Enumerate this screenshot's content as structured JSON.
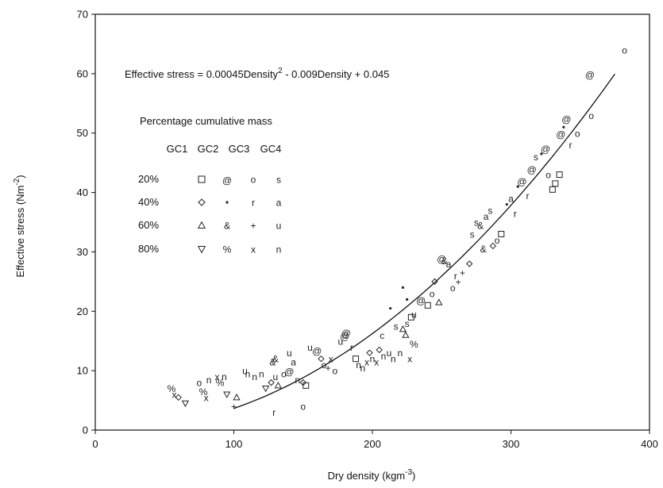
{
  "chart_data": {
    "type": "scatter",
    "xlabel": "Dry density (kgm-3)",
    "xlabel_parts": [
      "Dry density (kgm",
      "-3",
      ")"
    ],
    "ylabel": "Effective stress (Nm-2)",
    "ylabel_parts": [
      "Effective stress (Nm",
      "-2",
      ")"
    ],
    "xlim": [
      0,
      400
    ],
    "ylim": [
      0,
      70
    ],
    "x_ticks": [
      0,
      100,
      200,
      300,
      400
    ],
    "y_ticks": [
      0,
      10,
      20,
      30,
      40,
      50,
      60,
      70
    ],
    "grid": false,
    "equation": "Effective stress = 0.00045Density2 - 0.009Density + 0.045",
    "equation_parts": [
      "Effective stress = 0.00045Density",
      "2",
      " - 0.009Density + 0.045"
    ],
    "fit": {
      "a": 0.00045,
      "b": -0.009,
      "c": 0.045,
      "x_range": [
        100,
        375
      ]
    },
    "legend": {
      "title": "Percentage cumulative mass",
      "columns": [
        "GC1",
        "GC2",
        "GC3",
        "GC4"
      ],
      "rows": [
        {
          "label": "20%",
          "symbols": [
            "□",
            "@",
            "o",
            "s"
          ]
        },
        {
          "label": "40%",
          "symbols": [
            "◇",
            "•",
            "r",
            "a"
          ]
        },
        {
          "label": "60%",
          "symbols": [
            "△",
            "&",
            "+",
            "u"
          ]
        },
        {
          "label": "80%",
          "symbols": [
            "▽",
            "%",
            "x",
            "n"
          ]
        }
      ]
    },
    "points": [
      {
        "x": 55,
        "y": 7,
        "s": "%"
      },
      {
        "x": 57,
        "y": 6,
        "s": "x"
      },
      {
        "x": 60,
        "y": 5.5,
        "s": "◇"
      },
      {
        "x": 65,
        "y": 4.5,
        "s": "▽"
      },
      {
        "x": 75,
        "y": 8,
        "s": "o"
      },
      {
        "x": 78,
        "y": 6.5,
        "s": "%"
      },
      {
        "x": 80,
        "y": 5.5,
        "s": "x"
      },
      {
        "x": 82,
        "y": 8.5,
        "s": "n"
      },
      {
        "x": 88,
        "y": 9,
        "s": "x"
      },
      {
        "x": 90,
        "y": 8,
        "s": "%"
      },
      {
        "x": 93,
        "y": 9,
        "s": "n"
      },
      {
        "x": 95,
        "y": 6,
        "s": "▽"
      },
      {
        "x": 100,
        "y": 4,
        "s": "+"
      },
      {
        "x": 102,
        "y": 5.5,
        "s": "△"
      },
      {
        "x": 108,
        "y": 10,
        "s": "u"
      },
      {
        "x": 110,
        "y": 9.5,
        "s": "n"
      },
      {
        "x": 115,
        "y": 9,
        "s": "n"
      },
      {
        "x": 120,
        "y": 9.5,
        "s": "n"
      },
      {
        "x": 123,
        "y": 7,
        "s": "▽"
      },
      {
        "x": 127,
        "y": 8,
        "s": "◇"
      },
      {
        "x": 128,
        "y": 11.5,
        "s": "&"
      },
      {
        "x": 130,
        "y": 12,
        "s": "&"
      },
      {
        "x": 130,
        "y": 9,
        "s": "u"
      },
      {
        "x": 132,
        "y": 7.5,
        "s": "△"
      },
      {
        "x": 129,
        "y": 3,
        "s": "r"
      },
      {
        "x": 136,
        "y": 9.5,
        "s": "o"
      },
      {
        "x": 140,
        "y": 10,
        "s": "@"
      },
      {
        "x": 143,
        "y": 11.5,
        "s": "a"
      },
      {
        "x": 140,
        "y": 13,
        "s": "u"
      },
      {
        "x": 146,
        "y": 8.5,
        "s": "n"
      },
      {
        "x": 150,
        "y": 8,
        "s": "◇"
      },
      {
        "x": 152,
        "y": 7.5,
        "s": "□"
      },
      {
        "x": 150,
        "y": 4,
        "s": "o"
      },
      {
        "x": 155,
        "y": 14,
        "s": "u"
      },
      {
        "x": 160,
        "y": 13.5,
        "s": "@"
      },
      {
        "x": 163,
        "y": 12,
        "s": "◇"
      },
      {
        "x": 165,
        "y": 11,
        "s": "o"
      },
      {
        "x": 168,
        "y": 10.5,
        "s": "+"
      },
      {
        "x": 170,
        "y": 12,
        "s": "x"
      },
      {
        "x": 173,
        "y": 10,
        "s": "o"
      },
      {
        "x": 177,
        "y": 15,
        "s": "u"
      },
      {
        "x": 180,
        "y": 16,
        "s": "@"
      },
      {
        "x": 181,
        "y": 16.5,
        "s": "@"
      },
      {
        "x": 185,
        "y": 14,
        "s": "r"
      },
      {
        "x": 188,
        "y": 12,
        "s": "□"
      },
      {
        "x": 190,
        "y": 11,
        "s": "n"
      },
      {
        "x": 193,
        "y": 10.5,
        "s": "n"
      },
      {
        "x": 196,
        "y": 11.5,
        "s": "x"
      },
      {
        "x": 198,
        "y": 13,
        "s": "◇"
      },
      {
        "x": 200,
        "y": 12,
        "s": "n"
      },
      {
        "x": 203,
        "y": 11.5,
        "s": "x"
      },
      {
        "x": 205,
        "y": 13.5,
        "s": "◇"
      },
      {
        "x": 207,
        "y": 16,
        "s": "c"
      },
      {
        "x": 208,
        "y": 12.5,
        "s": "n"
      },
      {
        "x": 212,
        "y": 13,
        "s": "u"
      },
      {
        "x": 215,
        "y": 12,
        "s": "n"
      },
      {
        "x": 217,
        "y": 17.5,
        "s": "s"
      },
      {
        "x": 220,
        "y": 13,
        "s": "n"
      },
      {
        "x": 222,
        "y": 17,
        "s": "△"
      },
      {
        "x": 224,
        "y": 16,
        "s": "△"
      },
      {
        "x": 225,
        "y": 18,
        "s": "s"
      },
      {
        "x": 227,
        "y": 12,
        "s": "x"
      },
      {
        "x": 230,
        "y": 14.5,
        "s": "%"
      },
      {
        "x": 225,
        "y": 22,
        "s": "•"
      },
      {
        "x": 222,
        "y": 24,
        "s": "•"
      },
      {
        "x": 213,
        "y": 20.5,
        "s": "•"
      },
      {
        "x": 228,
        "y": 19,
        "s": "□"
      },
      {
        "x": 230,
        "y": 19.5,
        "s": "u"
      },
      {
        "x": 235,
        "y": 22,
        "s": "@"
      },
      {
        "x": 240,
        "y": 21,
        "s": "□"
      },
      {
        "x": 243,
        "y": 23,
        "s": "o"
      },
      {
        "x": 245,
        "y": 25,
        "s": "◇"
      },
      {
        "x": 248,
        "y": 21.5,
        "s": "△"
      },
      {
        "x": 250,
        "y": 29,
        "s": "@"
      },
      {
        "x": 252,
        "y": 28.5,
        "s": "&"
      },
      {
        "x": 255,
        "y": 28,
        "s": "a"
      },
      {
        "x": 258,
        "y": 24,
        "s": "o"
      },
      {
        "x": 260,
        "y": 26,
        "s": "r"
      },
      {
        "x": 262,
        "y": 25,
        "s": "+"
      },
      {
        "x": 265,
        "y": 26.5,
        "s": "+"
      },
      {
        "x": 270,
        "y": 28,
        "s": "◇"
      },
      {
        "x": 272,
        "y": 33,
        "s": "s"
      },
      {
        "x": 275,
        "y": 35,
        "s": "s"
      },
      {
        "x": 278,
        "y": 34.5,
        "s": "&"
      },
      {
        "x": 280,
        "y": 30.5,
        "s": "&"
      },
      {
        "x": 282,
        "y": 36,
        "s": "a"
      },
      {
        "x": 285,
        "y": 37,
        "s": "s"
      },
      {
        "x": 287,
        "y": 31,
        "s": "◇"
      },
      {
        "x": 290,
        "y": 32,
        "s": "o"
      },
      {
        "x": 293,
        "y": 33,
        "s": "□"
      },
      {
        "x": 297,
        "y": 38,
        "s": "•"
      },
      {
        "x": 300,
        "y": 39,
        "s": "a"
      },
      {
        "x": 303,
        "y": 36.5,
        "s": "r"
      },
      {
        "x": 305,
        "y": 41,
        "s": "•"
      },
      {
        "x": 308,
        "y": 42,
        "s": "@"
      },
      {
        "x": 312,
        "y": 39.5,
        "s": "r"
      },
      {
        "x": 315,
        "y": 44,
        "s": "@"
      },
      {
        "x": 318,
        "y": 46,
        "s": "s"
      },
      {
        "x": 322,
        "y": 46.5,
        "s": "•"
      },
      {
        "x": 325,
        "y": 47.5,
        "s": "@"
      },
      {
        "x": 327,
        "y": 43,
        "s": "o"
      },
      {
        "x": 330,
        "y": 40.5,
        "s": "□"
      },
      {
        "x": 332,
        "y": 41.5,
        "s": "□"
      },
      {
        "x": 335,
        "y": 43,
        "s": "□"
      },
      {
        "x": 336,
        "y": 50,
        "s": "@"
      },
      {
        "x": 338,
        "y": 51,
        "s": "•"
      },
      {
        "x": 340,
        "y": 52.5,
        "s": "@"
      },
      {
        "x": 343,
        "y": 48,
        "s": "r"
      },
      {
        "x": 348,
        "y": 50,
        "s": "o"
      },
      {
        "x": 357,
        "y": 60,
        "s": "@"
      },
      {
        "x": 358,
        "y": 53,
        "s": "o"
      },
      {
        "x": 382,
        "y": 64,
        "s": "o"
      }
    ]
  }
}
